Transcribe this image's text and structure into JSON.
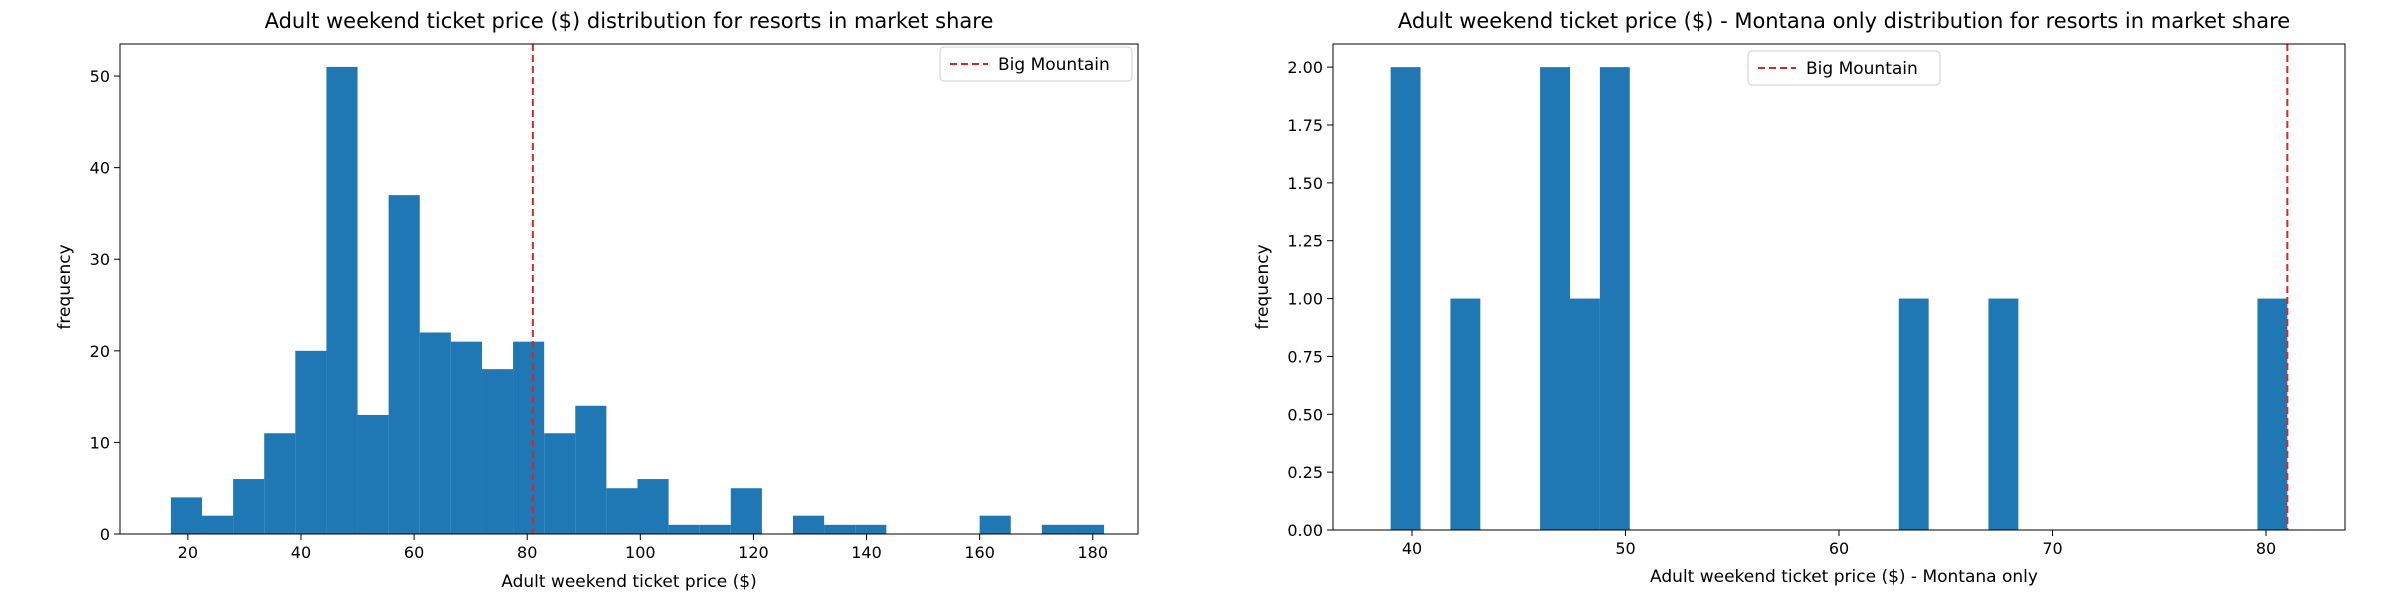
{
  "chart_data": [
    {
      "type": "bar",
      "title": "Adult weekend ticket price ($) distribution for resorts in market share",
      "xlabel": "Adult weekend ticket price ($)",
      "ylabel": "frequency",
      "xlim": [
        8,
        188
      ],
      "ylim": [
        0,
        53.5
      ],
      "xticks": [
        20,
        40,
        60,
        80,
        100,
        120,
        140,
        160,
        180
      ],
      "yticks": [
        0,
        10,
        20,
        30,
        40,
        50
      ],
      "bin_edges": [
        17,
        22.5,
        28,
        33.5,
        39,
        44.5,
        50,
        55.5,
        61,
        66.5,
        72,
        77.5,
        83,
        88.5,
        94,
        99.5,
        105,
        110.5,
        116,
        121.5,
        127,
        132.5,
        138,
        143.5,
        149,
        154.5,
        160,
        165.5,
        171,
        176.5,
        182
      ],
      "counts": [
        4,
        2,
        6,
        11,
        20,
        51,
        13,
        37,
        22,
        21,
        18,
        21,
        11,
        14,
        5,
        6,
        1,
        1,
        5,
        0,
        2,
        1,
        1,
        0,
        0,
        0,
        2,
        0,
        1,
        1
      ],
      "bar_color": "#1f77b4",
      "reference_line": {
        "name": "Big Mountain",
        "x": 81,
        "color": "#d62728",
        "style": "dashed"
      },
      "legend_position": "upper right",
      "grid": false
    },
    {
      "type": "bar",
      "title": "Adult weekend ticket price ($) - Montana only distribution for resorts in market share",
      "xlabel": "Adult weekend ticket price ($) - Montana only",
      "ylabel": "frequency",
      "xlim": [
        36.3,
        83.7
      ],
      "ylim": [
        0,
        2.1
      ],
      "xticks": [
        40,
        50,
        60,
        70,
        80
      ],
      "yticks": [
        0.0,
        0.25,
        0.5,
        0.75,
        1.0,
        1.25,
        1.5,
        1.75,
        2.0
      ],
      "bin_edges": [
        39,
        40.4,
        41.8,
        43.2,
        44.6,
        46,
        47.4,
        48.8,
        50.2,
        51.6,
        53,
        54.4,
        55.8,
        57.2,
        58.6,
        60,
        61.4,
        62.8,
        64.2,
        65.6,
        67,
        68.4,
        69.8,
        71.2,
        72.6,
        74,
        75.4,
        76.8,
        78.2,
        79.6,
        81
      ],
      "counts": [
        2,
        0,
        1,
        0,
        0,
        2,
        1,
        2,
        0,
        0,
        0,
        0,
        0,
        0,
        0,
        0,
        0,
        1,
        0,
        0,
        1,
        0,
        0,
        0,
        0,
        0,
        0,
        0,
        0,
        1
      ],
      "bar_color": "#1f77b4",
      "reference_line": {
        "name": "Big Mountain",
        "x": 81,
        "color": "#d62728",
        "style": "dashed"
      },
      "legend_position": "upper center",
      "grid": false
    }
  ]
}
